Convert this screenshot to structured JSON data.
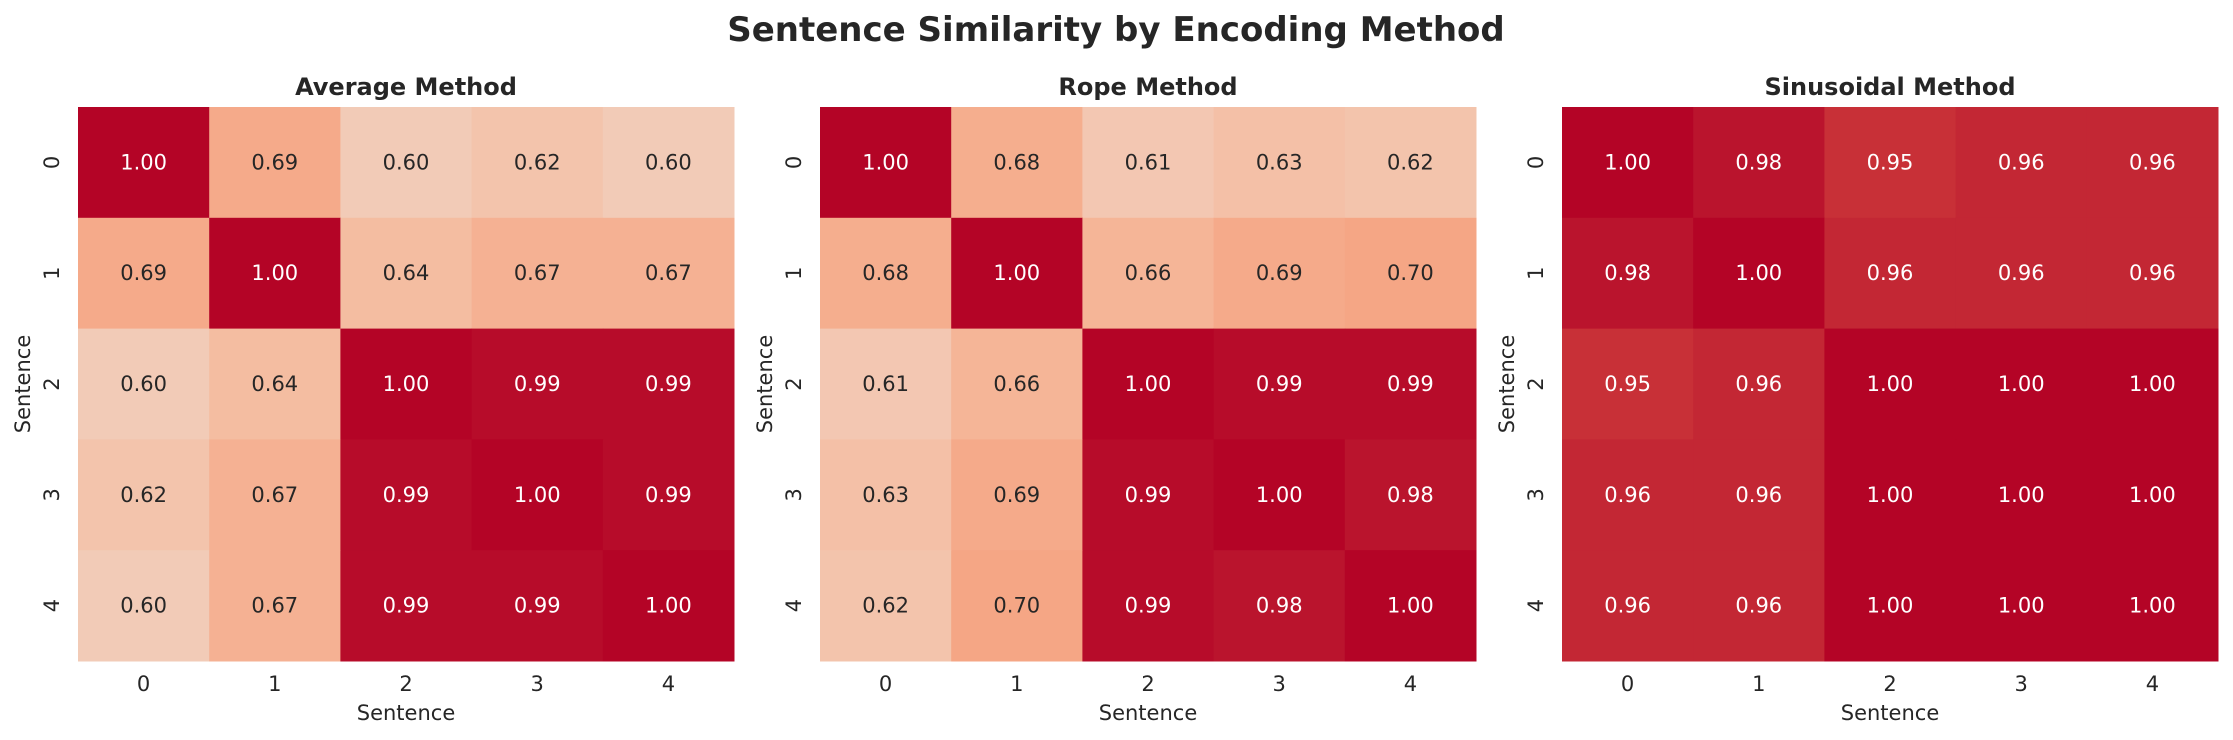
{
  "figure": {
    "title": "Sentence Similarity by Encoding Method"
  },
  "chart_data": [
    {
      "type": "heatmap",
      "title": "Average Method",
      "xlabel": "Sentence",
      "ylabel": "Sentence",
      "x_categories": [
        "0",
        "1",
        "2",
        "3",
        "4"
      ],
      "y_categories": [
        "0",
        "1",
        "2",
        "3",
        "4"
      ],
      "values": [
        [
          1.0,
          0.69,
          0.6,
          0.62,
          0.6
        ],
        [
          0.69,
          1.0,
          0.64,
          0.67,
          0.67
        ],
        [
          0.6,
          0.64,
          1.0,
          0.99,
          0.99
        ],
        [
          0.62,
          0.67,
          0.99,
          1.0,
          0.99
        ],
        [
          0.6,
          0.67,
          0.99,
          0.99,
          1.0
        ]
      ],
      "value_format": "0.00",
      "colormap": "coolwarm",
      "vmin": 0,
      "vmax": 1,
      "colorbar": false
    },
    {
      "type": "heatmap",
      "title": "Rope Method",
      "xlabel": "Sentence",
      "ylabel": "Sentence",
      "x_categories": [
        "0",
        "1",
        "2",
        "3",
        "4"
      ],
      "y_categories": [
        "0",
        "1",
        "2",
        "3",
        "4"
      ],
      "values": [
        [
          1.0,
          0.68,
          0.61,
          0.63,
          0.62
        ],
        [
          0.68,
          1.0,
          0.66,
          0.69,
          0.7
        ],
        [
          0.61,
          0.66,
          1.0,
          0.99,
          0.99
        ],
        [
          0.63,
          0.69,
          0.99,
          1.0,
          0.98
        ],
        [
          0.62,
          0.7,
          0.99,
          0.98,
          1.0
        ]
      ],
      "value_format": "0.00",
      "colormap": "coolwarm",
      "vmin": 0,
      "vmax": 1,
      "colorbar": false
    },
    {
      "type": "heatmap",
      "title": "Sinusoidal Method",
      "xlabel": "Sentence",
      "ylabel": "Sentence",
      "x_categories": [
        "0",
        "1",
        "2",
        "3",
        "4"
      ],
      "y_categories": [
        "0",
        "1",
        "2",
        "3",
        "4"
      ],
      "values": [
        [
          1.0,
          0.98,
          0.95,
          0.96,
          0.96
        ],
        [
          0.98,
          1.0,
          0.96,
          0.96,
          0.96
        ],
        [
          0.95,
          0.96,
          1.0,
          1.0,
          1.0
        ],
        [
          0.96,
          0.96,
          1.0,
          1.0,
          1.0
        ],
        [
          0.96,
          0.96,
          1.0,
          1.0,
          1.0
        ]
      ],
      "value_format": "0.00",
      "colormap": "coolwarm",
      "vmin": 0,
      "vmax": 1,
      "colorbar": false
    }
  ]
}
